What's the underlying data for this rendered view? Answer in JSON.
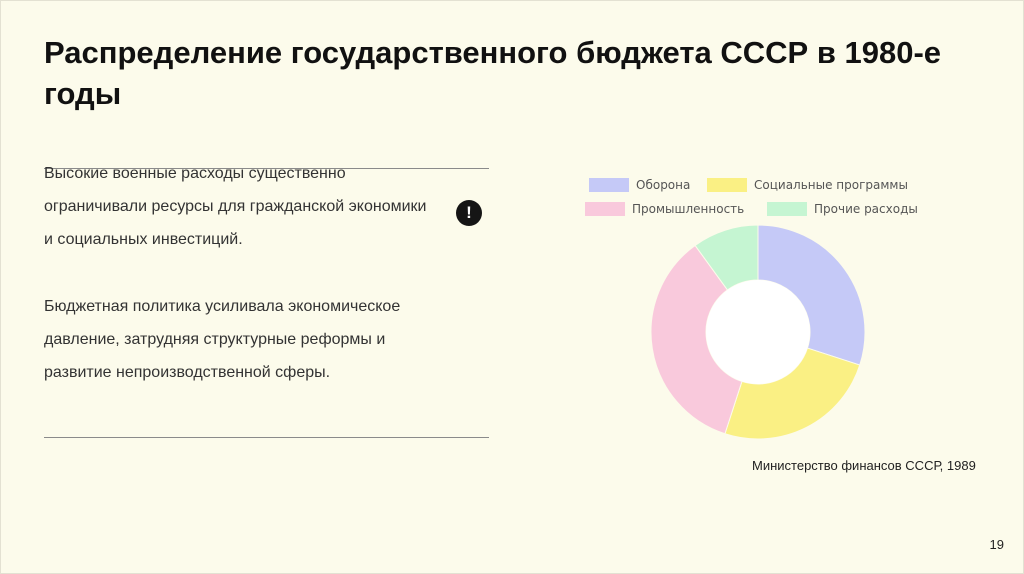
{
  "slide": {
    "title": "Распределение государственного бюджета СССР в 1980-е годы",
    "paragraphs": [
      "Высокие военные расходы существенно ограничивали ресурсы для гражданской экономики и социальных инвестиций.",
      "Бюджетная политика усиливала экономическое давление, затрудняя структурные реформы и развитие непроизводственной сферы."
    ],
    "alert_icon": "exclamation-circle-icon",
    "alert_glyph": "!",
    "source": "Министерство финансов СССР, 1989",
    "page_number": "19"
  },
  "chart_data": {
    "type": "pie",
    "title": "",
    "labels": [
      "Оборона",
      "Социальные программы",
      "Промышленность",
      "Прочие расходы"
    ],
    "values": [
      30,
      25,
      35,
      10
    ],
    "colors": [
      "#c5c9f7",
      "#faf084",
      "#f9c9dc",
      "#c5f5d2"
    ],
    "donut": true,
    "legend": "top",
    "start_angle": "12 o'clock, clockwise"
  }
}
